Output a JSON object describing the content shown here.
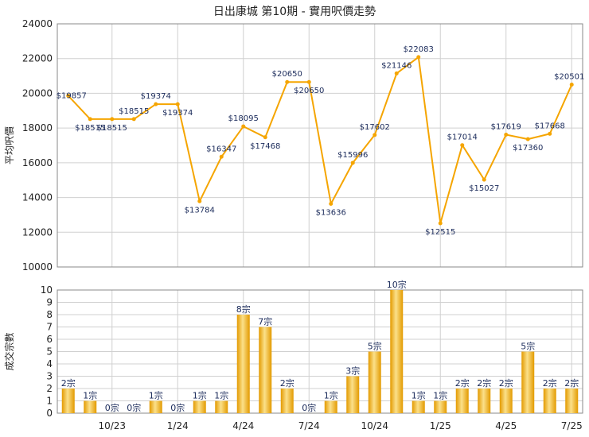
{
  "title": "日出康城 第10期 - 實用呎價走勢",
  "colors": {
    "line": "#f5a500",
    "bar_light": "#fbe08a",
    "bar_dark": "#e39a00",
    "grid": "#d0d0d0"
  },
  "chart_data": [
    {
      "type": "line",
      "ylabel": "平均呎價",
      "ylim": [
        10000,
        24000
      ],
      "yticks": [
        10000,
        12000,
        14000,
        16000,
        18000,
        20000,
        22000,
        24000
      ],
      "x_tick_labels": [
        "10/23",
        "1/24",
        "4/24",
        "7/24",
        "10/24",
        "1/25",
        "4/25",
        "7/25"
      ],
      "values": [
        19857,
        18515,
        18515,
        18515,
        19374,
        19374,
        13784,
        16347,
        18095,
        17468,
        20650,
        20650,
        13636,
        15996,
        17602,
        21146,
        22083,
        12515,
        17014,
        15027,
        17619,
        17360,
        17668,
        20501
      ],
      "labels": [
        "$19857",
        "$18515",
        "$18515",
        "$18515",
        "$19374",
        "$19374",
        "$13784",
        "$16347",
        "$18095",
        "$17468",
        "$20650",
        "$20650",
        "$13636",
        "$15996",
        "$17602",
        "$21146",
        "$22083",
        "$12515",
        "$17014",
        "$15027",
        "$17619",
        "$17360",
        "$17668",
        "$20501"
      ],
      "grid": true
    },
    {
      "type": "bar",
      "ylabel": "成交宗數",
      "ylim": [
        0,
        10
      ],
      "yticks": [
        0,
        1,
        2,
        3,
        4,
        5,
        6,
        7,
        8,
        9,
        10
      ],
      "x_tick_labels": [
        "10/23",
        "1/24",
        "4/24",
        "7/24",
        "10/24",
        "1/25",
        "4/25",
        "7/25"
      ],
      "values": [
        2,
        1,
        0,
        0,
        1,
        0,
        1,
        1,
        8,
        7,
        2,
        0,
        1,
        3,
        5,
        10,
        1,
        1,
        2,
        2,
        2,
        5,
        2,
        2
      ],
      "labels": [
        "2宗",
        "1宗",
        "0宗",
        "0宗",
        "1宗",
        "0宗",
        "1宗",
        "1宗",
        "8宗",
        "7宗",
        "2宗",
        "0宗",
        "1宗",
        "3宗",
        "5宗",
        "10宗",
        "1宗",
        "1宗",
        "2宗",
        "2宗",
        "2宗",
        "5宗",
        "2宗",
        "2宗"
      ],
      "grid": true
    }
  ]
}
